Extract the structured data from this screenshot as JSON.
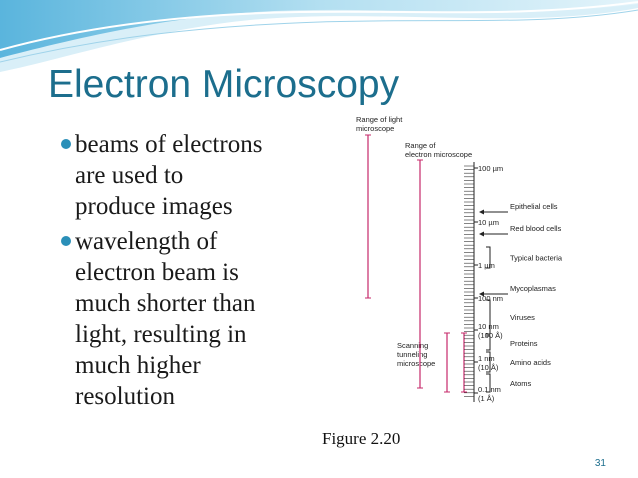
{
  "header": {
    "title": "Electron Microscopy"
  },
  "bullets": [
    {
      "lines": [
        "beams of electrons",
        "are used to",
        "produce images"
      ]
    },
    {
      "lines": [
        "wavelength of",
        "electron beam is",
        "much shorter than",
        "light, resulting in",
        "much higher",
        "resolution"
      ]
    }
  ],
  "figure": {
    "light_range": [
      "Range of light",
      "microscope"
    ],
    "electron_range": [
      "Range of",
      "electron microscope"
    ],
    "tunneling": [
      "Scanning",
      "tunneling",
      "microscope"
    ],
    "scale_labels": [
      [
        "100 µm"
      ],
      [
        "10 µm"
      ],
      [
        "1 µm"
      ],
      [
        "100 nm"
      ],
      [
        "10 nm",
        "(100 Å)"
      ],
      [
        "1 nm",
        "(10 Å)"
      ],
      [
        "0.1 nm",
        "(1 Å)"
      ]
    ],
    "objects": [
      "Epithelial cells",
      "Red blood cells",
      "Typical bacteria",
      "Mycoplasmas",
      "Viruses",
      "Proteins",
      "Amino acids",
      "Atoms"
    ],
    "caption": "Figure 2.20"
  },
  "footer": {
    "page_number": "31"
  }
}
